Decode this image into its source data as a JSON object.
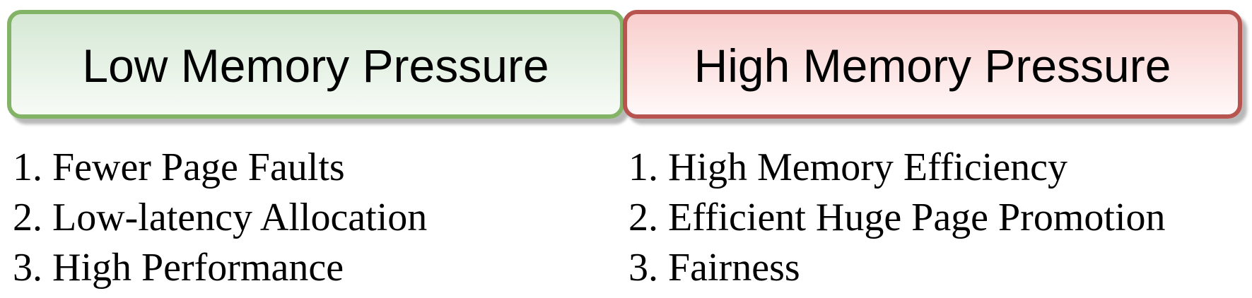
{
  "colors": {
    "low_border": "#82b366",
    "low_fill_top": "#d5e8d4",
    "high_border": "#b85450",
    "high_fill_top": "#f8cecc"
  },
  "low": {
    "title": "Low Memory Pressure",
    "items": [
      "1. Fewer Page Faults",
      "2. Low-latency Allocation",
      "3. High Performance"
    ]
  },
  "high": {
    "title": "High Memory Pressure",
    "items": [
      "1. High Memory Efficiency",
      "2. Efficient Huge Page Promotion",
      "3. Fairness"
    ]
  }
}
